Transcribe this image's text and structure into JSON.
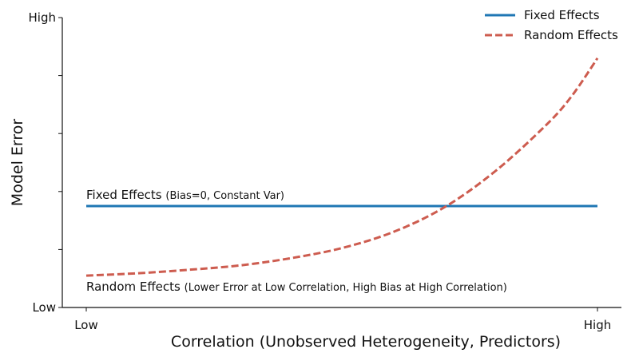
{
  "chart_data": {
    "type": "line",
    "xlabel": "Correlation (Unobserved Heterogeneity, Predictors)",
    "ylabel": "Model Error",
    "xlim": [
      0,
      1
    ],
    "ylim": [
      0,
      1
    ],
    "x_ticks": [
      {
        "value": 0,
        "label": "Low"
      },
      {
        "value": 1,
        "label": "High"
      }
    ],
    "y_ticks": [
      {
        "value": 0,
        "label": "Low"
      },
      {
        "value": 0.2,
        "label": ""
      },
      {
        "value": 0.4,
        "label": ""
      },
      {
        "value": 0.6,
        "label": ""
      },
      {
        "value": 0.8,
        "label": ""
      },
      {
        "value": 1,
        "label": "High"
      }
    ],
    "grid": false,
    "legend": "top-right",
    "series": [
      {
        "name": "Fixed Effects",
        "color": "#1f77b4",
        "style": "solid",
        "x": [
          0,
          1
        ],
        "y": [
          0.35,
          0.35
        ]
      },
      {
        "name": "Random Effects",
        "color": "#cd5c4f",
        "style": "dashed",
        "x": [
          0,
          0.1,
          0.2,
          0.3,
          0.4,
          0.5,
          0.6,
          0.7,
          0.8,
          0.9,
          0.95,
          1.0
        ],
        "y": [
          0.11,
          0.118,
          0.13,
          0.145,
          0.17,
          0.205,
          0.26,
          0.345,
          0.47,
          0.63,
          0.73,
          0.86
        ]
      }
    ],
    "annotations": [
      {
        "id": "fe",
        "main": "Fixed Effects",
        "detail": "(Bias=0, Constant Var)",
        "x": 0,
        "y": 0.35,
        "color": "#111111"
      },
      {
        "id": "re",
        "main": "Random Effects",
        "detail": "(Lower Error at Low Correlation, High Bias at High Correlation)",
        "x": 0,
        "y": 0.11,
        "color": "#111111"
      }
    ]
  }
}
